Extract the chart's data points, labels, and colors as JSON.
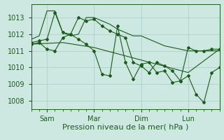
{
  "background_color": "#cce8e0",
  "grid_color": "#aacccc",
  "line_color": "#1a5c1a",
  "xlabel": "Pression niveau de la mer( hPa )",
  "xlabel_fontsize": 8,
  "tick_label_fontsize": 7,
  "yticks": [
    1008,
    1009,
    1010,
    1011,
    1012,
    1013
  ],
  "ymin": 1007.5,
  "ymax": 1013.8,
  "xmin": 0,
  "xmax": 144,
  "xtick_positions": [
    12,
    48,
    84,
    120
  ],
  "xtick_labels": [
    "Sam",
    "Mar",
    "Dim",
    "Lun"
  ],
  "series1_x": [
    0,
    6,
    12,
    18,
    24,
    30,
    36,
    42,
    48,
    54,
    60,
    66,
    72,
    78,
    84,
    90,
    96,
    102,
    108,
    114,
    120,
    126,
    132,
    138,
    144
  ],
  "series1_y": [
    1011.7,
    1011.9,
    1013.4,
    1013.4,
    1012.1,
    1011.9,
    1012.0,
    1013.0,
    1013.0,
    1012.8,
    1012.6,
    1012.3,
    1012.1,
    1011.9,
    1011.9,
    1011.7,
    1011.5,
    1011.3,
    1011.2,
    1011.1,
    1011.0,
    1011.0,
    1011.0,
    1011.0,
    1011.0
  ],
  "series2_x": [
    0,
    6,
    12,
    18,
    24,
    30,
    36,
    42,
    48,
    54,
    60,
    66,
    72,
    78,
    84,
    90,
    96,
    102,
    108,
    114,
    120,
    126,
    132,
    138,
    144
  ],
  "series2_y": [
    1011.5,
    1011.6,
    1011.7,
    1013.3,
    1012.1,
    1012.0,
    1013.0,
    1012.8,
    1012.9,
    1012.5,
    1012.2,
    1012.0,
    1011.8,
    1010.3,
    1010.1,
    1009.7,
    1010.3,
    1010.1,
    1009.8,
    1009.2,
    1011.2,
    1011.0,
    1011.0,
    1011.1,
    1011.1
  ],
  "series3_x": [
    0,
    6,
    12,
    18,
    24,
    30,
    36,
    42,
    48,
    54,
    60,
    66,
    72,
    78,
    84,
    90,
    96,
    102,
    108,
    114,
    120,
    126,
    132,
    138,
    144
  ],
  "series3_y": [
    1011.4,
    1011.5,
    1011.1,
    1011.0,
    1011.8,
    1012.0,
    1011.7,
    1011.4,
    1011.0,
    1009.6,
    1009.5,
    1012.5,
    1010.3,
    1009.3,
    1010.2,
    1010.3,
    1009.7,
    1009.8,
    1009.1,
    1009.2,
    1009.5,
    1008.4,
    1007.9,
    1009.7,
    1010.0
  ],
  "series4_x": [
    0,
    24,
    48,
    72,
    96,
    120,
    144
  ],
  "series4_y": [
    1011.4,
    1011.5,
    1011.2,
    1010.7,
    1010.2,
    1009.7,
    1011.1
  ]
}
